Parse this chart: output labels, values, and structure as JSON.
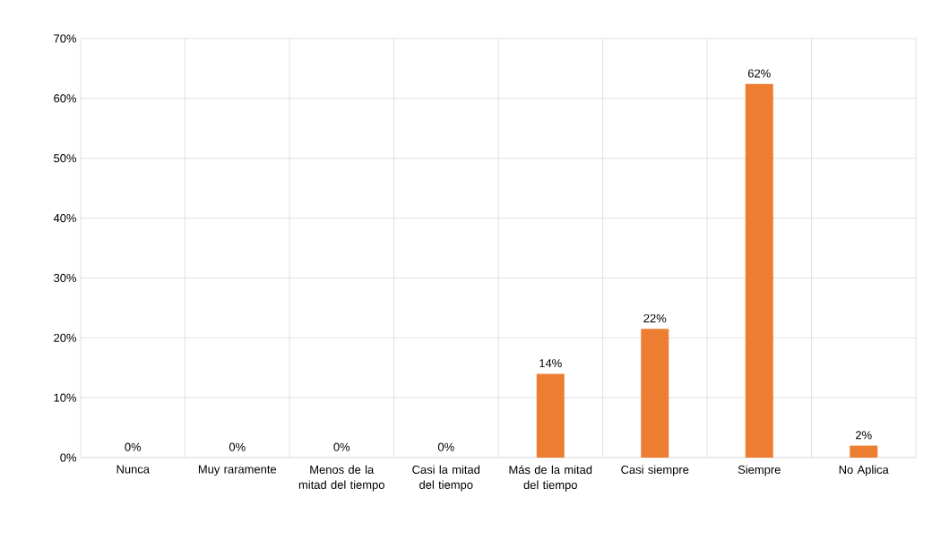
{
  "chart_data": {
    "type": "bar",
    "categories": [
      "Nunca",
      "Muy raramente",
      "Menos de la mitad del tiempo",
      "Casi la mitad del tiempo",
      "Más de la mitad del tiempo",
      "Casi siempre",
      "Siempre",
      "No Aplica"
    ],
    "values": [
      0,
      0,
      0,
      0,
      14,
      21.5,
      62.4,
      2
    ],
    "value_labels": [
      "0%",
      "0%",
      "0%",
      "0%",
      "14%",
      "22%",
      "62%",
      "2%"
    ],
    "color": "#ed7d31",
    "ylim": [
      0,
      70
    ],
    "yticks": [
      {
        "value": 0,
        "label": "0%"
      },
      {
        "value": 10,
        "label": "10%"
      },
      {
        "value": 20,
        "label": "20%"
      },
      {
        "value": 30,
        "label": "30%"
      },
      {
        "value": 40,
        "label": "40%"
      },
      {
        "value": 50,
        "label": "50%"
      },
      {
        "value": 60,
        "label": "60%"
      },
      {
        "value": 70,
        "label": "70%"
      }
    ],
    "grid": true
  }
}
